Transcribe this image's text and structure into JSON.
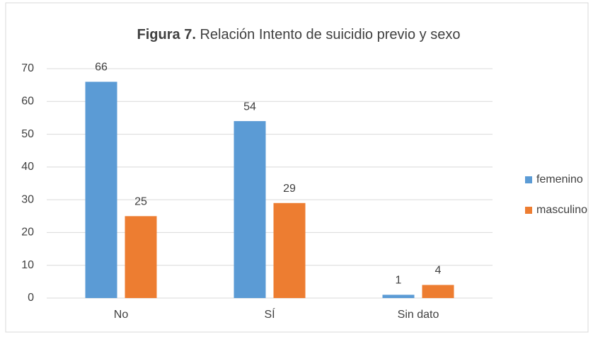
{
  "chart_data": {
    "type": "bar",
    "title": [
      "Figura 7.",
      "Relación  Intento de suicidio previo y sexo"
    ],
    "categories": [
      "No",
      "SÍ",
      "Sin dato"
    ],
    "series": [
      {
        "name": "femenino",
        "color": "#5b9bd5",
        "values": [
          66,
          54,
          1
        ]
      },
      {
        "name": "masculino",
        "color": "#ed7d31",
        "values": [
          25,
          29,
          4
        ]
      }
    ],
    "ylim": [
      0,
      70
    ],
    "yticks": [
      0,
      10,
      20,
      30,
      40,
      50,
      60,
      70
    ],
    "grid": true,
    "legend": "right"
  }
}
